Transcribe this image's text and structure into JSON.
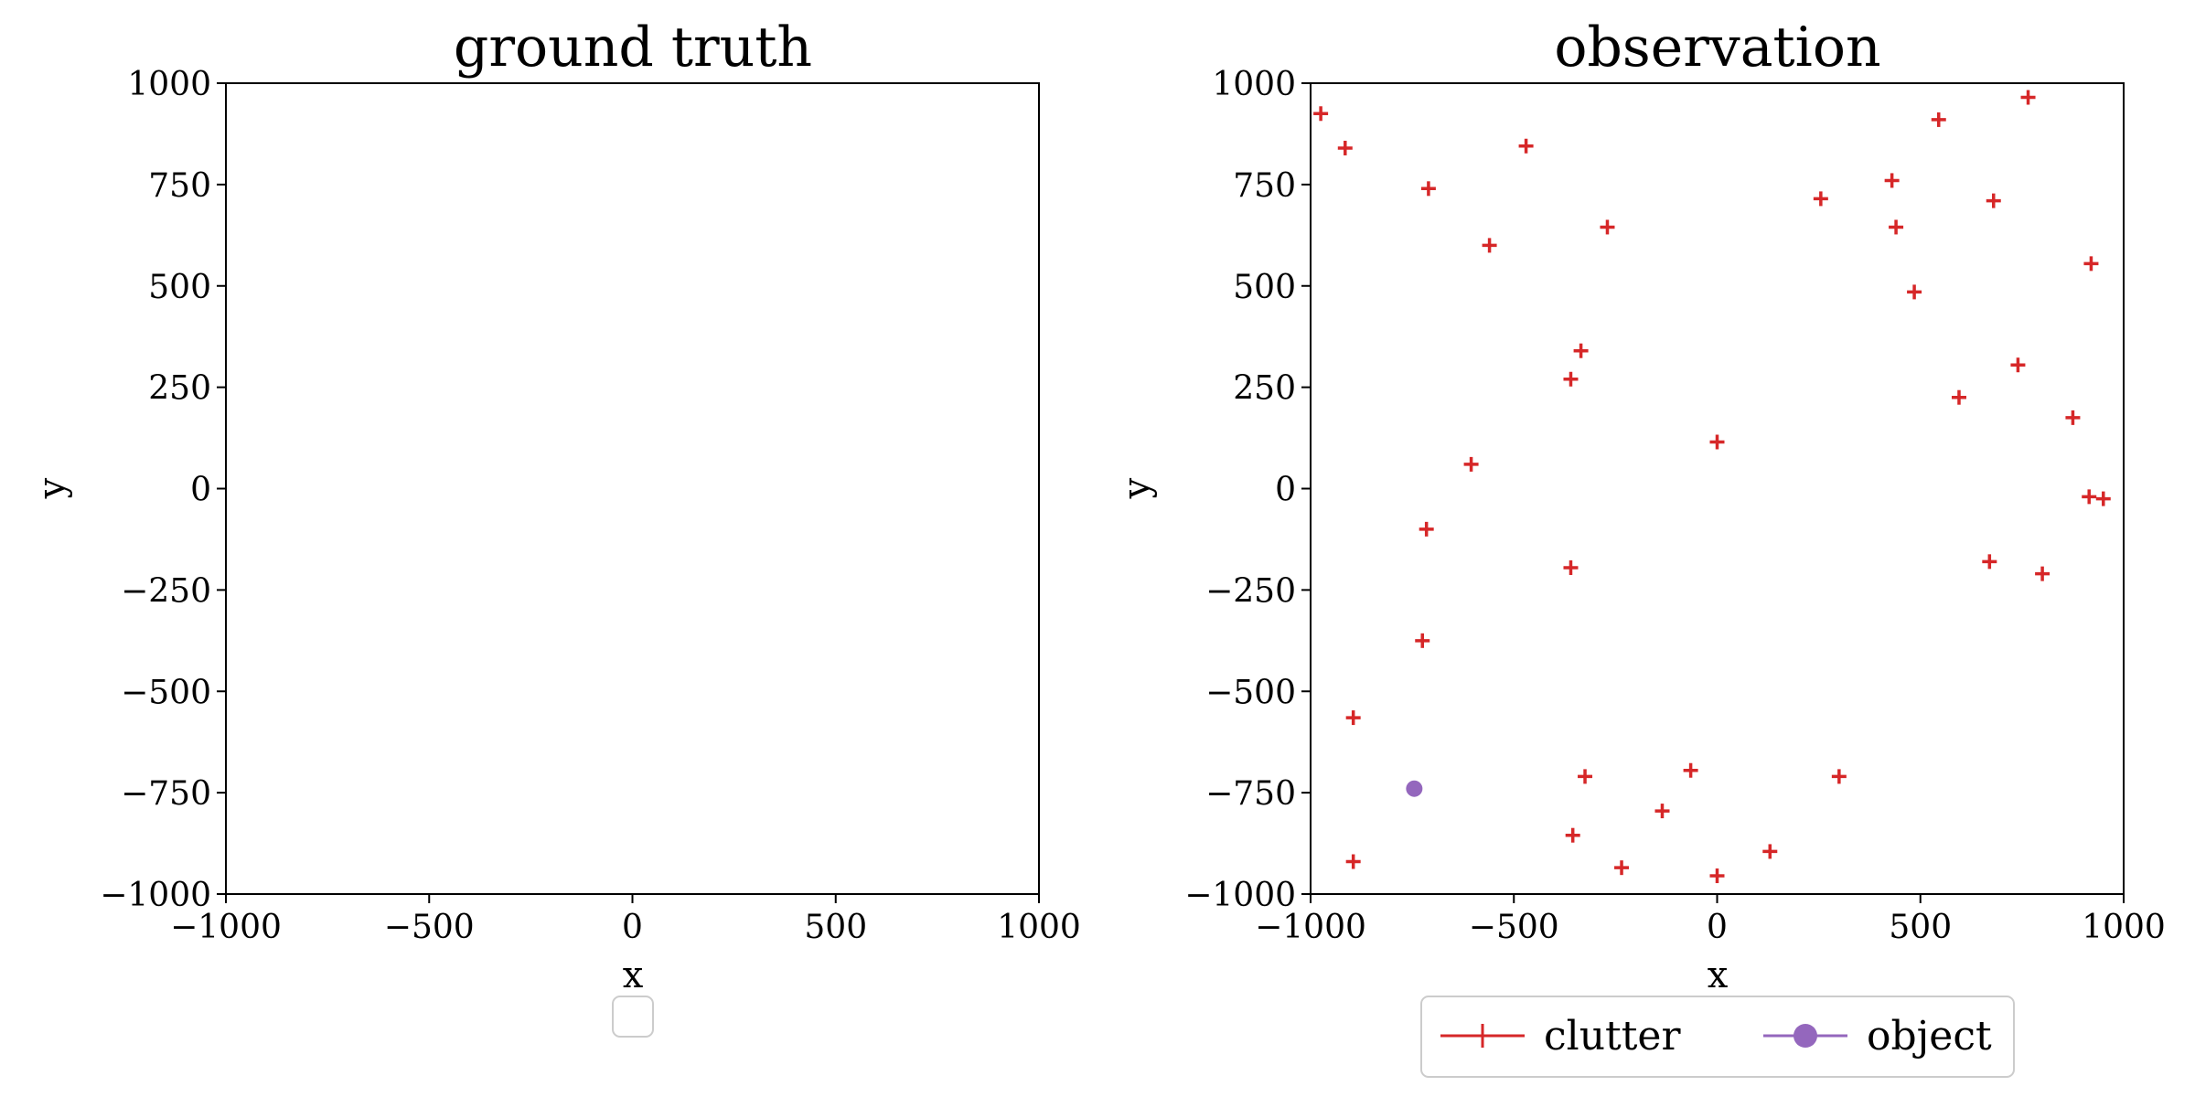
{
  "chart_data": [
    {
      "type": "scatter",
      "title": "ground truth",
      "xlabel": "x",
      "ylabel": "y",
      "xlim": [
        -1000,
        1000
      ],
      "ylim": [
        -1000,
        1000
      ],
      "xticks": [
        "−1000",
        "−500",
        "0",
        "500",
        "1000"
      ],
      "yticks": [
        "−1000",
        "−750",
        "−500",
        "−250",
        "0",
        "250",
        "500",
        "750",
        "1000"
      ],
      "grid": false,
      "legend": {
        "placement": "below",
        "entries": []
      },
      "series": []
    },
    {
      "type": "scatter",
      "title": "observation",
      "xlabel": "x",
      "ylabel": "y",
      "xlim": [
        -1000,
        1000
      ],
      "ylim": [
        -1000,
        1000
      ],
      "xticks": [
        "−1000",
        "−500",
        "0",
        "500",
        "1000"
      ],
      "yticks": [
        "−1000",
        "−750",
        "−500",
        "−250",
        "0",
        "250",
        "500",
        "750",
        "1000"
      ],
      "grid": false,
      "legend": {
        "placement": "below",
        "ncol": 2
      },
      "series": [
        {
          "name": "clutter",
          "marker": "plus",
          "color": "#d62728",
          "points": [
            [
              -975,
              925
            ],
            [
              -915,
              840
            ],
            [
              -710,
              740
            ],
            [
              -470,
              845
            ],
            [
              -560,
              600
            ],
            [
              -270,
              645
            ],
            [
              -335,
              340
            ],
            [
              -360,
              270
            ],
            [
              -605,
              60
            ],
            [
              -715,
              -100
            ],
            [
              -360,
              -195
            ],
            [
              -725,
              -375
            ],
            [
              -895,
              -565
            ],
            [
              -895,
              -920
            ],
            [
              -325,
              -710
            ],
            [
              -355,
              -855
            ],
            [
              -235,
              -935
            ],
            [
              -135,
              -795
            ],
            [
              -65,
              -695
            ],
            [
              0,
              -955
            ],
            [
              130,
              -895
            ],
            [
              300,
              -710
            ],
            [
              0,
              115
            ],
            [
              255,
              715
            ],
            [
              430,
              760
            ],
            [
              440,
              645
            ],
            [
              485,
              485
            ],
            [
              545,
              910
            ],
            [
              680,
              710
            ],
            [
              765,
              965
            ],
            [
              920,
              555
            ],
            [
              595,
              225
            ],
            [
              740,
              305
            ],
            [
              875,
              175
            ],
            [
              915,
              -20
            ],
            [
              950,
              -25
            ],
            [
              670,
              -180
            ],
            [
              800,
              -210
            ]
          ]
        },
        {
          "name": "object",
          "marker": "circle",
          "color": "#9467bd",
          "points": [
            [
              -745,
              -740
            ]
          ]
        }
      ]
    }
  ]
}
